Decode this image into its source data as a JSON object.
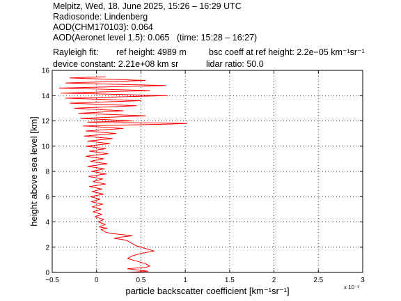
{
  "header": {
    "line1": "Melpitz, Wed, 18. June 2025, 15:26 – 16:29 UTC",
    "line2": "Radiosonde: Lindenberg",
    "line3": "AOD(CHM170103): 0.064",
    "line4": "AOD(Aeronet level 1.5): 0.065   (time: 15:28 – 16:27)",
    "rayleigh_label": "Rayleigh fit:",
    "ref_height": "ref height: 4989 m",
    "bsc_coeff": "bsc coeff at ref height: 2.2e−05 km⁻¹sr⁻¹",
    "device_constant": "device constant: 2.21e+08 km sr",
    "lidar_ratio": "lidar ratio: 50.0"
  },
  "chart_data": {
    "type": "line",
    "xlabel": "particle backscatter coefficient [km⁻¹sr⁻¹]",
    "ylabel": "height above sea level [km]",
    "x_multiplier": "x 10⁻³",
    "xlim": [
      -0.5,
      3
    ],
    "ylim": [
      0,
      16
    ],
    "xticks": [
      -0.5,
      0,
      0.5,
      1,
      1.5,
      2,
      2.5,
      3
    ],
    "xtick_labels": [
      "−0.5",
      "0",
      "0.5",
      "1",
      "1.5",
      "2",
      "2.5",
      "3"
    ],
    "yticks": [
      0,
      2,
      4,
      6,
      8,
      10,
      12,
      14,
      16
    ],
    "ytick_labels": [
      "0",
      "2",
      "4",
      "6",
      "8",
      "10",
      "12",
      "14",
      "16"
    ],
    "grid": true,
    "series": [
      {
        "color": "#ff0000",
        "points": [
          [
            0.35,
            0.0
          ],
          [
            0.58,
            0.1
          ],
          [
            0.45,
            0.2
          ],
          [
            0.35,
            0.3
          ],
          [
            0.55,
            0.4
          ],
          [
            0.6,
            0.5
          ],
          [
            0.55,
            0.7
          ],
          [
            0.45,
            0.9
          ],
          [
            0.35,
            1.1
          ],
          [
            0.4,
            1.3
          ],
          [
            0.5,
            1.5
          ],
          [
            0.65,
            1.7
          ],
          [
            0.55,
            1.9
          ],
          [
            0.45,
            2.1
          ],
          [
            0.4,
            2.3
          ],
          [
            0.35,
            2.5
          ],
          [
            0.3,
            2.6
          ],
          [
            0.2,
            2.7
          ],
          [
            0.28,
            2.8
          ],
          [
            0.35,
            2.85
          ],
          [
            0.4,
            2.9
          ],
          [
            0.28,
            3.0
          ],
          [
            0.15,
            3.1
          ],
          [
            0.1,
            3.2
          ],
          [
            0.05,
            3.4
          ],
          [
            0.12,
            3.5
          ],
          [
            0.03,
            3.6
          ],
          [
            0.1,
            3.8
          ],
          [
            0.02,
            4.0
          ],
          [
            0.08,
            4.2
          ],
          [
            -0.02,
            4.4
          ],
          [
            0.06,
            4.6
          ],
          [
            -0.04,
            4.8
          ],
          [
            0.05,
            5.0
          ],
          [
            -0.05,
            5.2
          ],
          [
            0.07,
            5.4
          ],
          [
            -0.06,
            5.6
          ],
          [
            0.04,
            5.8
          ],
          [
            -0.07,
            6.0
          ],
          [
            0.08,
            6.2
          ],
          [
            -0.05,
            6.4
          ],
          [
            0.06,
            6.6
          ],
          [
            -0.08,
            6.8
          ],
          [
            0.1,
            7.0
          ],
          [
            -0.04,
            7.2
          ],
          [
            0.07,
            7.4
          ],
          [
            -0.09,
            7.6
          ],
          [
            0.11,
            7.8
          ],
          [
            -0.06,
            8.0
          ],
          [
            0.09,
            8.2
          ],
          [
            -0.1,
            8.4
          ],
          [
            0.12,
            8.6
          ],
          [
            -0.07,
            8.8
          ],
          [
            0.08,
            9.0
          ],
          [
            -0.12,
            9.2
          ],
          [
            0.13,
            9.4
          ],
          [
            -0.08,
            9.6
          ],
          [
            0.1,
            9.8
          ],
          [
            -0.12,
            10.0
          ],
          [
            0.15,
            10.2
          ],
          [
            -0.1,
            10.4
          ],
          [
            0.18,
            10.6
          ],
          [
            -0.14,
            10.8
          ],
          [
            0.22,
            11.0
          ],
          [
            -0.12,
            11.2
          ],
          [
            0.3,
            11.4
          ],
          [
            -0.15,
            11.6
          ],
          [
            0.85,
            11.75
          ],
          [
            1.02,
            11.8
          ],
          [
            -0.1,
            11.9
          ],
          [
            0.4,
            12.0
          ],
          [
            -0.18,
            12.2
          ],
          [
            0.55,
            12.4
          ],
          [
            -0.2,
            12.6
          ],
          [
            0.3,
            12.8
          ],
          [
            -0.25,
            13.0
          ],
          [
            0.45,
            13.2
          ],
          [
            -0.3,
            13.4
          ],
          [
            0.5,
            13.6
          ],
          [
            -0.35,
            13.8
          ],
          [
            0.8,
            14.0
          ],
          [
            -0.4,
            14.2
          ],
          [
            0.6,
            14.4
          ],
          [
            -0.42,
            14.6
          ],
          [
            0.78,
            14.8
          ],
          [
            -0.35,
            15.0
          ],
          [
            0.55,
            15.2
          ],
          [
            -0.3,
            15.4
          ],
          [
            0.1,
            15.5
          ]
        ]
      }
    ]
  }
}
